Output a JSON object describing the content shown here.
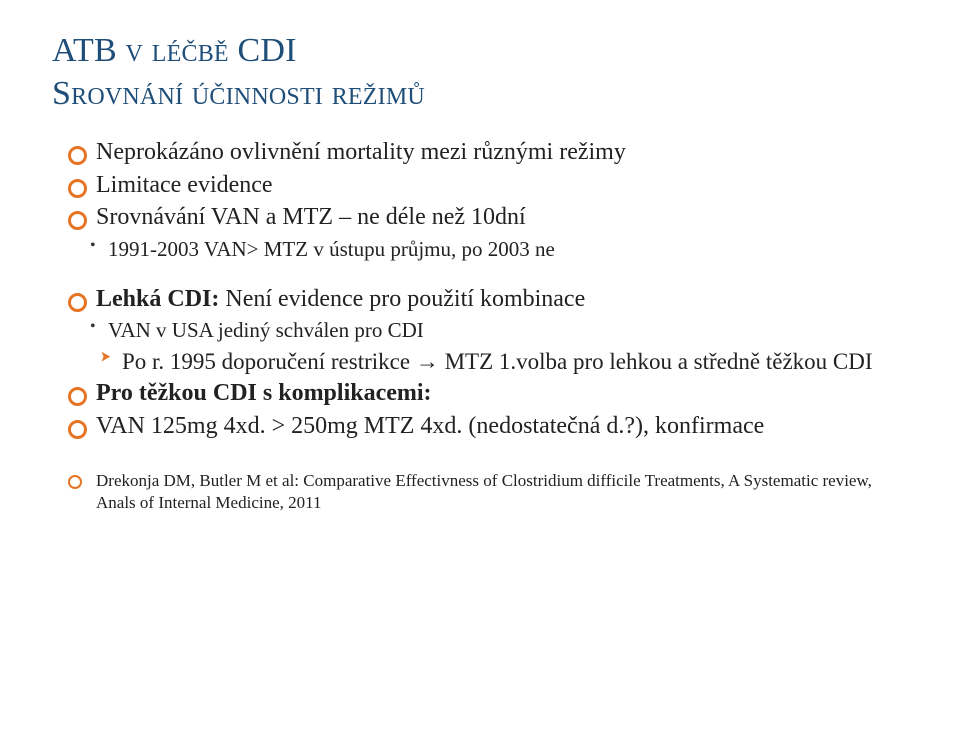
{
  "title": {
    "line1": "ATB v léčbě CDI",
    "line2": "Srovnání účinnosti režimů",
    "color": "#1f4e79",
    "fontsize": 34
  },
  "accent_color": "#e67424",
  "text_color": "#222222",
  "background_color": "#ffffff",
  "bullets": {
    "b1": "Neprokázáno ovlivnění mortality mezi různými režimy",
    "b2": "Limitace evidence",
    "b3": "Srovnávání VAN a MTZ – ne déle než 10dní",
    "b3a": "1991-2003 VAN> MTZ v ústupu průjmu, po 2003 ne",
    "b4_strong": "Lehká CDI:",
    "b4_rest": " Není evidence pro použití kombinace",
    "b4a": "VAN v USA jediný schválen pro CDI",
    "b4b": "Po r. 1995 doporučení restrikce → MTZ 1.volba pro lehkou a středně těžkou CDI",
    "b5": "Pro těžkou CDI s komplikacemi:",
    "b6": "VAN 125mg 4xd. > 250mg MTZ 4xd. (nedostatečná d.?), konfirmace"
  },
  "reference": "Drekonja DM, Butler M et al: Comparative Effectivness of Clostridium difficile Treatments, A Systematic review, Anals of Internal Medicine, 2011"
}
